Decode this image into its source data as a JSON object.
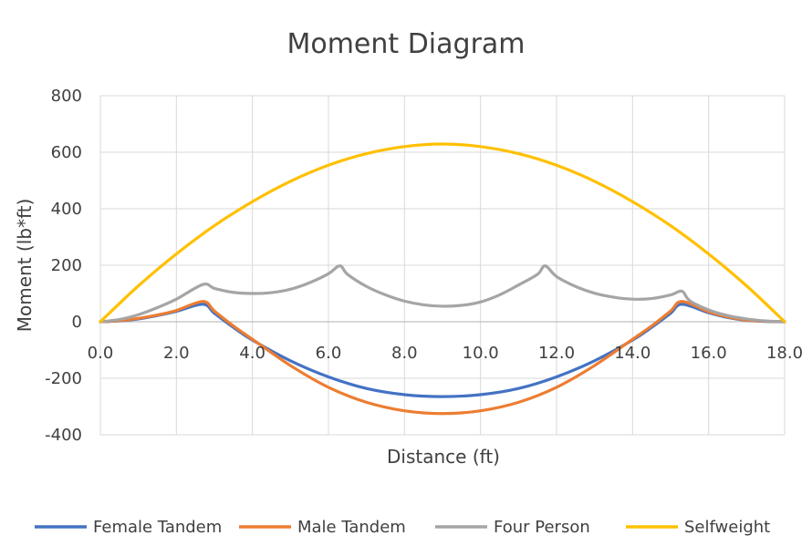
{
  "chart_data": {
    "type": "line",
    "title": "Moment Diagram",
    "xlabel": "Distance (ft)",
    "ylabel": "Moment (lb*ft)",
    "xlim": [
      0,
      18
    ],
    "ylim": [
      -400,
      800
    ],
    "xticks": [
      "0.0",
      "2.0",
      "4.0",
      "6.0",
      "8.0",
      "10.0",
      "12.0",
      "14.0",
      "16.0",
      "18.0"
    ],
    "yticks": [
      "800",
      "600",
      "400",
      "200",
      "0",
      "-200",
      "-400"
    ],
    "grid": true,
    "legend_position": "bottom",
    "series": [
      {
        "name": "Female Tandem",
        "color": "#4472C4",
        "x": [
          0,
          0.5,
          1,
          1.5,
          2,
          2.7,
          3.0,
          3.5,
          4,
          5,
          6,
          7,
          8,
          9,
          10,
          11,
          12,
          13,
          14,
          14.5,
          15,
          15.3,
          16,
          16.5,
          17,
          17.5,
          18
        ],
        "y": [
          0,
          3,
          10,
          22,
          37,
          62,
          30,
          -20,
          -65,
          -138,
          -195,
          -236,
          -258,
          -265,
          -258,
          -236,
          -195,
          -138,
          -65,
          -20,
          30,
          62,
          32,
          15,
          5,
          1,
          0
        ]
      },
      {
        "name": "Male Tandem",
        "color": "#ED7D31",
        "x": [
          0,
          0.5,
          1,
          1.5,
          2,
          2.7,
          3.0,
          3.5,
          4,
          5,
          6,
          7,
          8,
          9,
          10,
          11,
          12,
          13,
          14,
          14.5,
          15,
          15.3,
          16,
          16.5,
          17,
          17.5,
          18
        ],
        "y": [
          0,
          4,
          12,
          24,
          40,
          72,
          38,
          -15,
          -62,
          -155,
          -232,
          -285,
          -315,
          -325,
          -315,
          -285,
          -232,
          -155,
          -62,
          -15,
          38,
          72,
          35,
          17,
          6,
          2,
          0
        ]
      },
      {
        "name": "Four Person",
        "color": "#A5A5A5",
        "x": [
          0,
          0.5,
          1,
          1.5,
          2,
          2.7,
          3.0,
          3.5,
          4,
          4.5,
          5,
          5.5,
          6,
          6.3,
          6.5,
          7,
          7.5,
          8,
          8.5,
          9,
          9.5,
          10,
          10.5,
          11,
          11.5,
          11.7,
          12,
          12.5,
          13,
          13.5,
          14,
          14.5,
          15,
          15.3,
          15.5,
          16,
          16.5,
          17,
          17.5,
          18
        ],
        "y": [
          0,
          8,
          25,
          50,
          80,
          132,
          118,
          104,
          100,
          103,
          115,
          138,
          170,
          198,
          168,
          125,
          95,
          73,
          60,
          55,
          58,
          70,
          95,
          130,
          168,
          198,
          160,
          125,
          101,
          87,
          80,
          82,
          95,
          108,
          75,
          42,
          22,
          10,
          3,
          0
        ]
      },
      {
        "name": "Selfweight",
        "color": "#FFC000",
        "x": [
          0,
          1,
          2,
          3,
          4,
          5,
          6,
          7,
          8,
          9,
          10,
          11,
          12,
          13,
          14,
          15,
          16,
          17,
          18
        ],
        "y": [
          0,
          127,
          240,
          340,
          425,
          497,
          554,
          595,
          620,
          629,
          620,
          595,
          554,
          497,
          425,
          340,
          240,
          127,
          0
        ]
      }
    ]
  }
}
